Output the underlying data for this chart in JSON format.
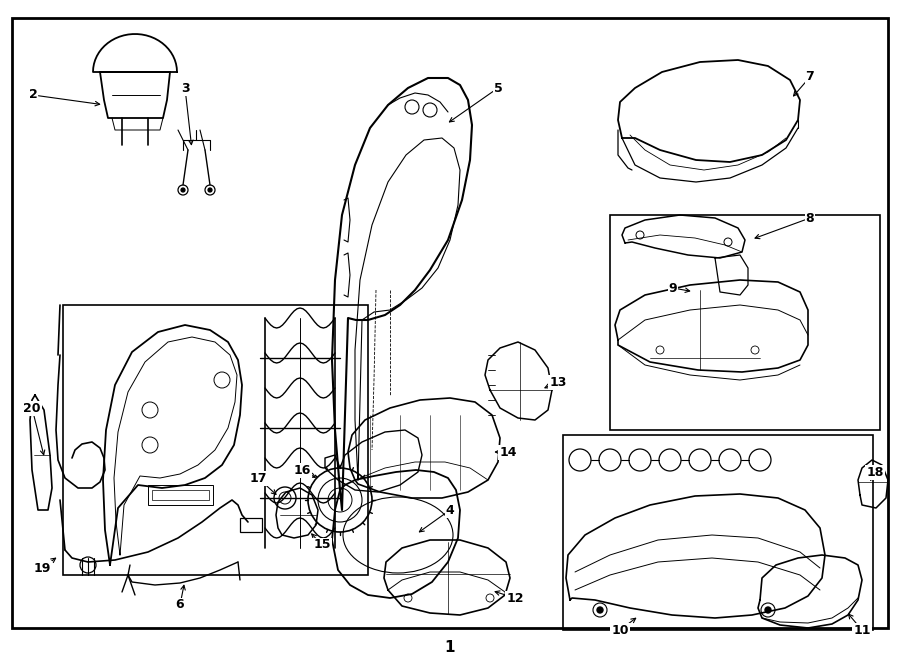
{
  "background_color": "#ffffff",
  "line_color": "#000000",
  "text_color": "#000000",
  "fig_width": 9.0,
  "fig_height": 6.61,
  "dpi": 100,
  "bottom_label": "1"
}
